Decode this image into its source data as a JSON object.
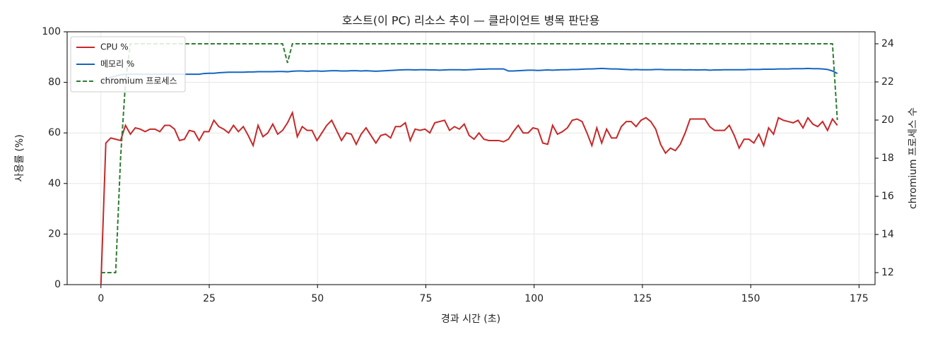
{
  "chart_data": {
    "type": "line",
    "title": "호스트(이 PC) 리소스 추이 — 클라이언트 병목 판단용",
    "xlabel": "경과 시간 (초)",
    "ylabel": "사용률 (%)",
    "y2label": "chromium 프로세스 수",
    "x": [
      0,
      1.13,
      2.27,
      3.4,
      4.53,
      5.67,
      6.8,
      7.93,
      9.07,
      10.2,
      11.33,
      12.47,
      13.6,
      14.73,
      15.87,
      17,
      18.13,
      19.27,
      20.4,
      21.53,
      22.67,
      23.8,
      24.93,
      26.07,
      27.2,
      28.33,
      29.47,
      30.6,
      31.73,
      32.87,
      34,
      35.13,
      36.27,
      37.4,
      38.53,
      39.67,
      40.8,
      41.93,
      43.07,
      44.2,
      45.33,
      46.47,
      47.6,
      48.73,
      49.87,
      51,
      52.13,
      53.27,
      54.4,
      55.53,
      56.67,
      57.8,
      58.93,
      60.07,
      61.2,
      62.33,
      63.47,
      64.6,
      65.73,
      66.87,
      68,
      69.13,
      70.27,
      71.4,
      72.53,
      73.67,
      74.8,
      75.93,
      77.07,
      78.2,
      79.33,
      80.47,
      81.6,
      82.73,
      83.87,
      85,
      86.13,
      87.27,
      88.4,
      89.53,
      90.67,
      91.8,
      92.93,
      94.07,
      95.2,
      96.33,
      97.47,
      98.6,
      99.73,
      100.87,
      102,
      103.13,
      104.27,
      105.4,
      106.53,
      107.67,
      108.8,
      109.93,
      111.07,
      112.2,
      113.33,
      114.47,
      115.6,
      116.73,
      117.87,
      119,
      120.13,
      121.27,
      122.4,
      123.53,
      124.67,
      125.8,
      126.93,
      128.07,
      129.2,
      130.33,
      131.47,
      132.6,
      133.73,
      134.87,
      136,
      137.13,
      138.27,
      139.4,
      140.53,
      141.67,
      142.8,
      143.93,
      145.07,
      146.2,
      147.33,
      148.47,
      149.6,
      150.73,
      151.87,
      153,
      154.13,
      155.27,
      156.4,
      157.53,
      158.67,
      159.8,
      160.93,
      162.07,
      163.2,
      164.33,
      165.47,
      166.6,
      167.73,
      168.87,
      170
    ],
    "series": [
      {
        "name": "CPU %",
        "color": "#c62828",
        "linestyle": "solid",
        "values": [
          0,
          56,
          58,
          57.5,
          57,
          63,
          59.5,
          62,
          61.5,
          60.5,
          61.5,
          61.5,
          60.5,
          63,
          63,
          61.5,
          57,
          57.5,
          61,
          60.5,
          57,
          60.5,
          60.5,
          65,
          62.5,
          61.5,
          60,
          63,
          60.5,
          62.5,
          59,
          55,
          63,
          58.5,
          60,
          63.5,
          59.5,
          61,
          64,
          68,
          58.5,
          62.5,
          61,
          61,
          57,
          60,
          63,
          65,
          61,
          57,
          60,
          59.5,
          55.5,
          59.5,
          62,
          59,
          56,
          59,
          59.5,
          58,
          62.5,
          62.5,
          64,
          57,
          61.5,
          61,
          61.5,
          60,
          64,
          64.5,
          65,
          61,
          62.5,
          61.5,
          63.5,
          59,
          57.5,
          60,
          57.5,
          57,
          57,
          57,
          56.5,
          57.5,
          60.5,
          63,
          60,
          60,
          62,
          61.5,
          56,
          55.5,
          63,
          59.5,
          60.5,
          62,
          65,
          65.5,
          64.5,
          60,
          55,
          62,
          56,
          61.5,
          58,
          58,
          62.5,
          64.5,
          64.5,
          62.5,
          65,
          66,
          64.5,
          61.5,
          55.5,
          52,
          54,
          53,
          55.5,
          60,
          65.5,
          65.5,
          65.5,
          65.5,
          62.5,
          61,
          61,
          61,
          63,
          59,
          54,
          57.5,
          57.5,
          56,
          59.5,
          55,
          62,
          59.5,
          66,
          65,
          64.5,
          64,
          65,
          62,
          66,
          63.5,
          62.5,
          64.5,
          61,
          65.5,
          63
        ]
      },
      {
        "name": "메모리 %",
        "color": "#1565c0",
        "linestyle": "solid",
        "values": [
          80,
          81,
          82,
          82.5,
          83,
          83.2,
          83.2,
          83.2,
          83.2,
          83.2,
          83.2,
          83.2,
          83.2,
          83.2,
          83.2,
          83.2,
          83.2,
          83.2,
          83.2,
          83.2,
          83.2,
          83.5,
          83.6,
          83.6,
          83.8,
          83.9,
          84,
          84,
          84,
          84,
          84.1,
          84.1,
          84.2,
          84.2,
          84.2,
          84.2,
          84.3,
          84.3,
          84.2,
          84.4,
          84.5,
          84.5,
          84.4,
          84.5,
          84.5,
          84.4,
          84.5,
          84.6,
          84.6,
          84.5,
          84.5,
          84.6,
          84.6,
          84.5,
          84.6,
          84.5,
          84.4,
          84.5,
          84.6,
          84.7,
          84.8,
          84.9,
          85,
          85,
          84.9,
          85,
          85,
          84.9,
          84.9,
          84.8,
          84.9,
          85,
          85,
          85,
          84.9,
          85,
          85.1,
          85.2,
          85.2,
          85.3,
          85.3,
          85.3,
          85.3,
          84.5,
          84.5,
          84.6,
          84.7,
          84.8,
          84.8,
          84.7,
          84.8,
          84.9,
          84.8,
          84.9,
          85,
          85,
          85.1,
          85.1,
          85.2,
          85.3,
          85.3,
          85.4,
          85.5,
          85.4,
          85.3,
          85.3,
          85.2,
          85.1,
          85,
          85.1,
          85,
          85,
          85,
          85.1,
          85.1,
          85,
          85,
          85,
          85,
          84.9,
          85,
          84.9,
          84.9,
          85,
          84.8,
          84.9,
          84.9,
          85,
          85,
          85,
          85,
          85,
          85.1,
          85.1,
          85.1,
          85.2,
          85.2,
          85.2,
          85.3,
          85.3,
          85.3,
          85.4,
          85.4,
          85.4,
          85.5,
          85.4,
          85.4,
          85.3,
          85.1,
          84.5,
          83.5
        ]
      },
      {
        "name": "chromium 프로세스",
        "color": "#2e7d32",
        "linestyle": "dashed",
        "axis": "y2",
        "values": [
          12,
          12,
          12,
          12,
          18,
          22,
          24,
          24,
          24,
          24,
          24,
          24,
          24,
          24,
          24,
          24,
          24,
          24,
          24,
          24,
          24,
          24,
          24,
          24,
          24,
          24,
          24,
          24,
          24,
          24,
          24,
          24,
          24,
          24,
          24,
          24,
          24,
          24,
          23,
          24,
          24,
          24,
          24,
          24,
          24,
          24,
          24,
          24,
          24,
          24,
          24,
          24,
          24,
          24,
          24,
          24,
          24,
          24,
          24,
          24,
          24,
          24,
          24,
          24,
          24,
          24,
          24,
          24,
          24,
          24,
          24,
          24,
          24,
          24,
          24,
          24,
          24,
          24,
          24,
          24,
          24,
          24,
          24,
          24,
          24,
          24,
          24,
          24,
          24,
          24,
          24,
          24,
          24,
          24,
          24,
          24,
          24,
          24,
          24,
          24,
          24,
          24,
          24,
          24,
          24,
          24,
          24,
          24,
          24,
          24,
          24,
          24,
          24,
          24,
          24,
          24,
          24,
          24,
          24,
          24,
          24,
          24,
          24,
          24,
          24,
          24,
          24,
          24,
          24,
          24,
          24,
          24,
          24,
          24,
          24,
          24,
          24,
          24,
          24,
          24,
          24,
          24,
          24,
          24,
          24,
          24,
          24,
          24,
          24,
          24,
          20
        ]
      }
    ],
    "xlim": [
      -7.8,
      178.7
    ],
    "xticks": [
      0,
      25,
      50,
      75,
      100,
      125,
      150,
      175
    ],
    "ylim": [
      0,
      100
    ],
    "yticks": [
      0,
      20,
      40,
      60,
      80,
      100
    ],
    "y2lim": [
      11.37,
      24.63
    ],
    "y2ticks": [
      12,
      14,
      16,
      18,
      20,
      22,
      24
    ],
    "grid": true,
    "legend": "upper left"
  }
}
